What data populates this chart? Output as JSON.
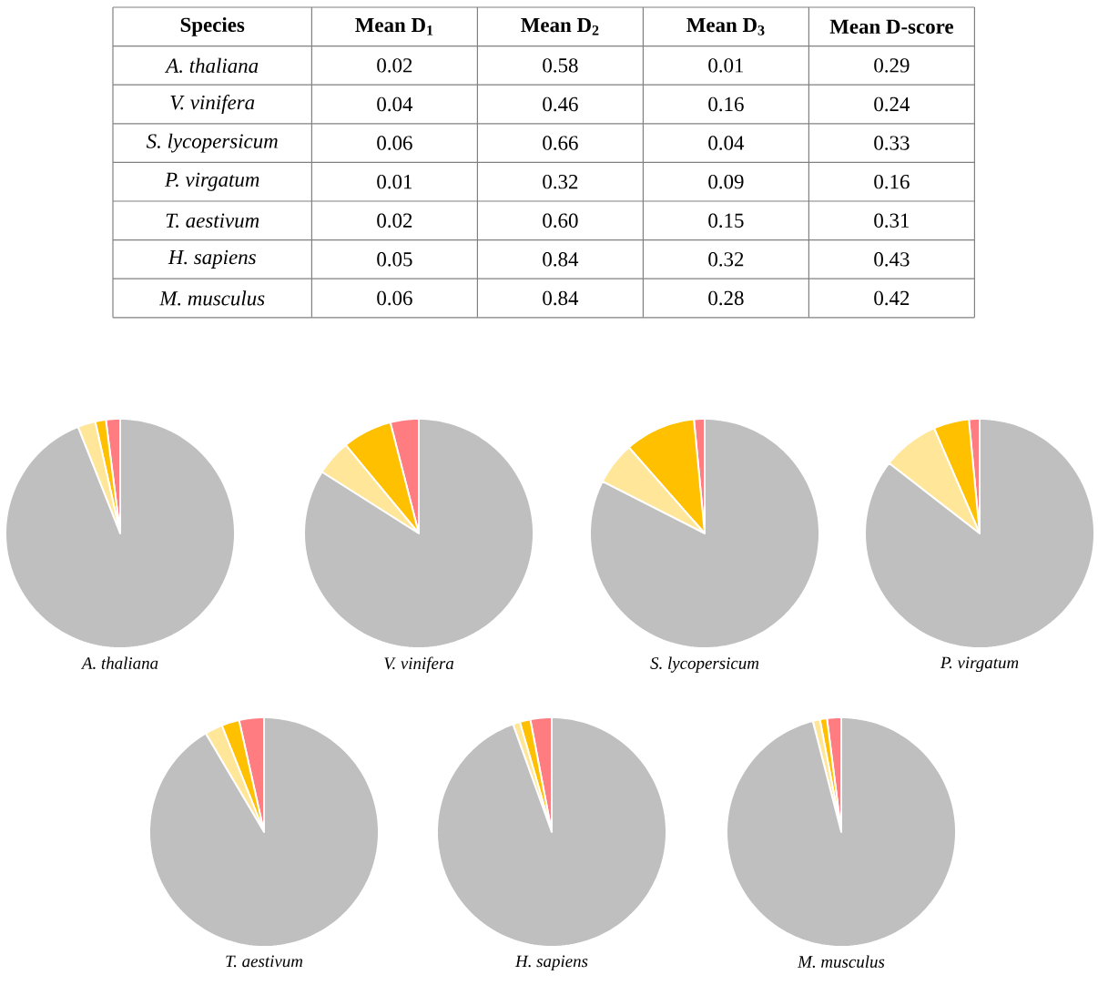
{
  "chart_data": [
    {
      "type": "heatmap",
      "ylabel": "Species",
      "categories": [
        "Mean D$_{1}$",
        "Mean D$_{2}$",
        "Mean D$_{3}$",
        "Mean D-score"
      ],
      "y_categories": [
        "A. thaliana",
        "V. vinifera",
        "S. lycopersicum",
        "P. virgatum",
        "T. aestivum",
        "H. sapiens",
        "M. musculus"
      ],
      "cells": [
        [
          0.02,
          0.58,
          0.01,
          0.29
        ],
        [
          0.04,
          0.46,
          0.16,
          0.24
        ],
        [
          0.06,
          0.66,
          0.04,
          0.33
        ],
        [
          0.01,
          0.32,
          0.09,
          0.16
        ],
        [
          0.02,
          0.6,
          0.15,
          0.31
        ],
        [
          0.05,
          0.84,
          0.32,
          0.43
        ],
        [
          0.06,
          0.84,
          0.28,
          0.42
        ]
      ],
      "cell_labels": [
        [
          "0.02",
          "0.58",
          "0.01",
          "0.29"
        ],
        [
          "0.04",
          "0.46",
          "0.16",
          "0.24"
        ],
        [
          "0.06",
          "0.66",
          "0.04",
          "0.33"
        ],
        [
          "0.01",
          "0.32",
          "0.09",
          "0.16"
        ],
        [
          "0.02",
          "0.60",
          "0.15",
          "0.31"
        ],
        [
          "0.05",
          "0.84",
          "0.32",
          "0.43"
        ],
        [
          "0.06",
          "0.84",
          "0.28",
          "0.42"
        ]
      ],
      "data_labels": true
    },
    {
      "type": "pie",
      "title": "A. thaliana",
      "categories": [
        null,
        null,
        null,
        null
      ],
      "values": [
        2,
        1.5,
        2.5,
        94
      ],
      "colors": [
        "#ff7c80",
        "#ffc000",
        "#ffe699",
        "#bfbfbf"
      ]
    },
    {
      "type": "pie",
      "title": "V. vinifera",
      "categories": [
        null,
        null,
        null,
        null
      ],
      "values": [
        4,
        7,
        5,
        84
      ],
      "colors": [
        "#ff7c80",
        "#ffc000",
        "#ffe699",
        "#bfbfbf"
      ]
    },
    {
      "type": "pie",
      "title": "S. lycopersicum",
      "categories": [
        null,
        null,
        null,
        null
      ],
      "values": [
        1.5,
        10,
        6,
        82.5
      ],
      "colors": [
        "#ff7c80",
        "#ffc000",
        "#ffe699",
        "#bfbfbf"
      ]
    },
    {
      "type": "pie",
      "title": "P. virgatum",
      "categories": [
        null,
        null,
        null,
        null
      ],
      "values": [
        1.5,
        5,
        8,
        85.5
      ],
      "colors": [
        "#ff7c80",
        "#ffc000",
        "#ffe699",
        "#bfbfbf"
      ]
    },
    {
      "type": "pie",
      "title": "T. aestivum",
      "categories": [
        null,
        null,
        null,
        null
      ],
      "values": [
        3.5,
        2.5,
        2.5,
        91.5
      ],
      "colors": [
        "#ff7c80",
        "#ffc000",
        "#ffe699",
        "#bfbfbf"
      ]
    },
    {
      "type": "pie",
      "title": "H. sapiens",
      "categories": [
        null,
        null,
        null,
        null
      ],
      "values": [
        3,
        1.5,
        1,
        94.5
      ],
      "colors": [
        "#ff7c80",
        "#ffc000",
        "#ffe699",
        "#bfbfbf"
      ]
    },
    {
      "type": "pie",
      "title": "M. musculus",
      "categories": [
        null,
        null,
        null,
        null
      ],
      "values": [
        2,
        1,
        1,
        96
      ],
      "colors": [
        "#ff7c80",
        "#ffc000",
        "#ffe699",
        "#bfbfbf"
      ]
    }
  ]
}
